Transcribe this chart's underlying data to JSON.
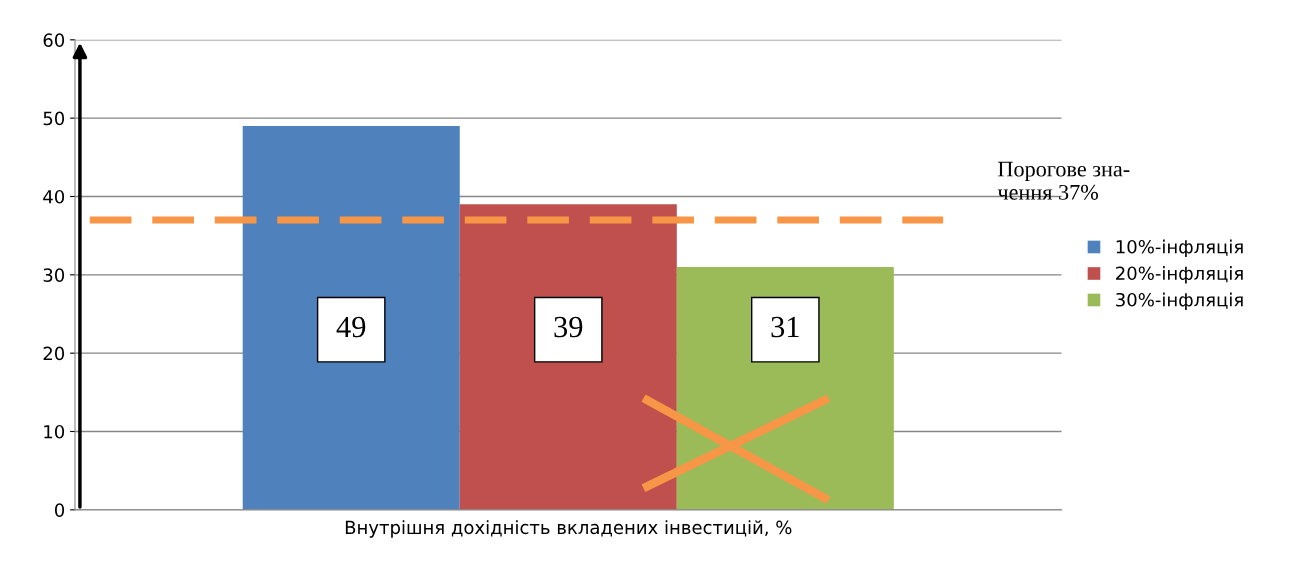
{
  "chart_data": {
    "type": "bar",
    "xlabel": "Внутрішня дохідність вкладених інвестицій, %",
    "categories": [
      null
    ],
    "series": [
      {
        "name": "10%-інфляція",
        "color": "#4f81bd",
        "values": [
          49
        ]
      },
      {
        "name": "20%-інфляція",
        "color": "#c0504d",
        "values": [
          39
        ]
      },
      {
        "name": "30%-інфляція",
        "color": "#9bbb59",
        "values": [
          31
        ]
      }
    ],
    "data_labels": true,
    "ref_lines": [
      {
        "axis": "y",
        "value": 37,
        "label": "Порогове зна-\nчення 37%",
        "color": "#f79646",
        "line_style": "dashed"
      }
    ],
    "ylim": [
      0,
      60
    ],
    "yticks": [
      0,
      10,
      20,
      30,
      40,
      50,
      60
    ],
    "grid": "y",
    "legend": "right"
  }
}
